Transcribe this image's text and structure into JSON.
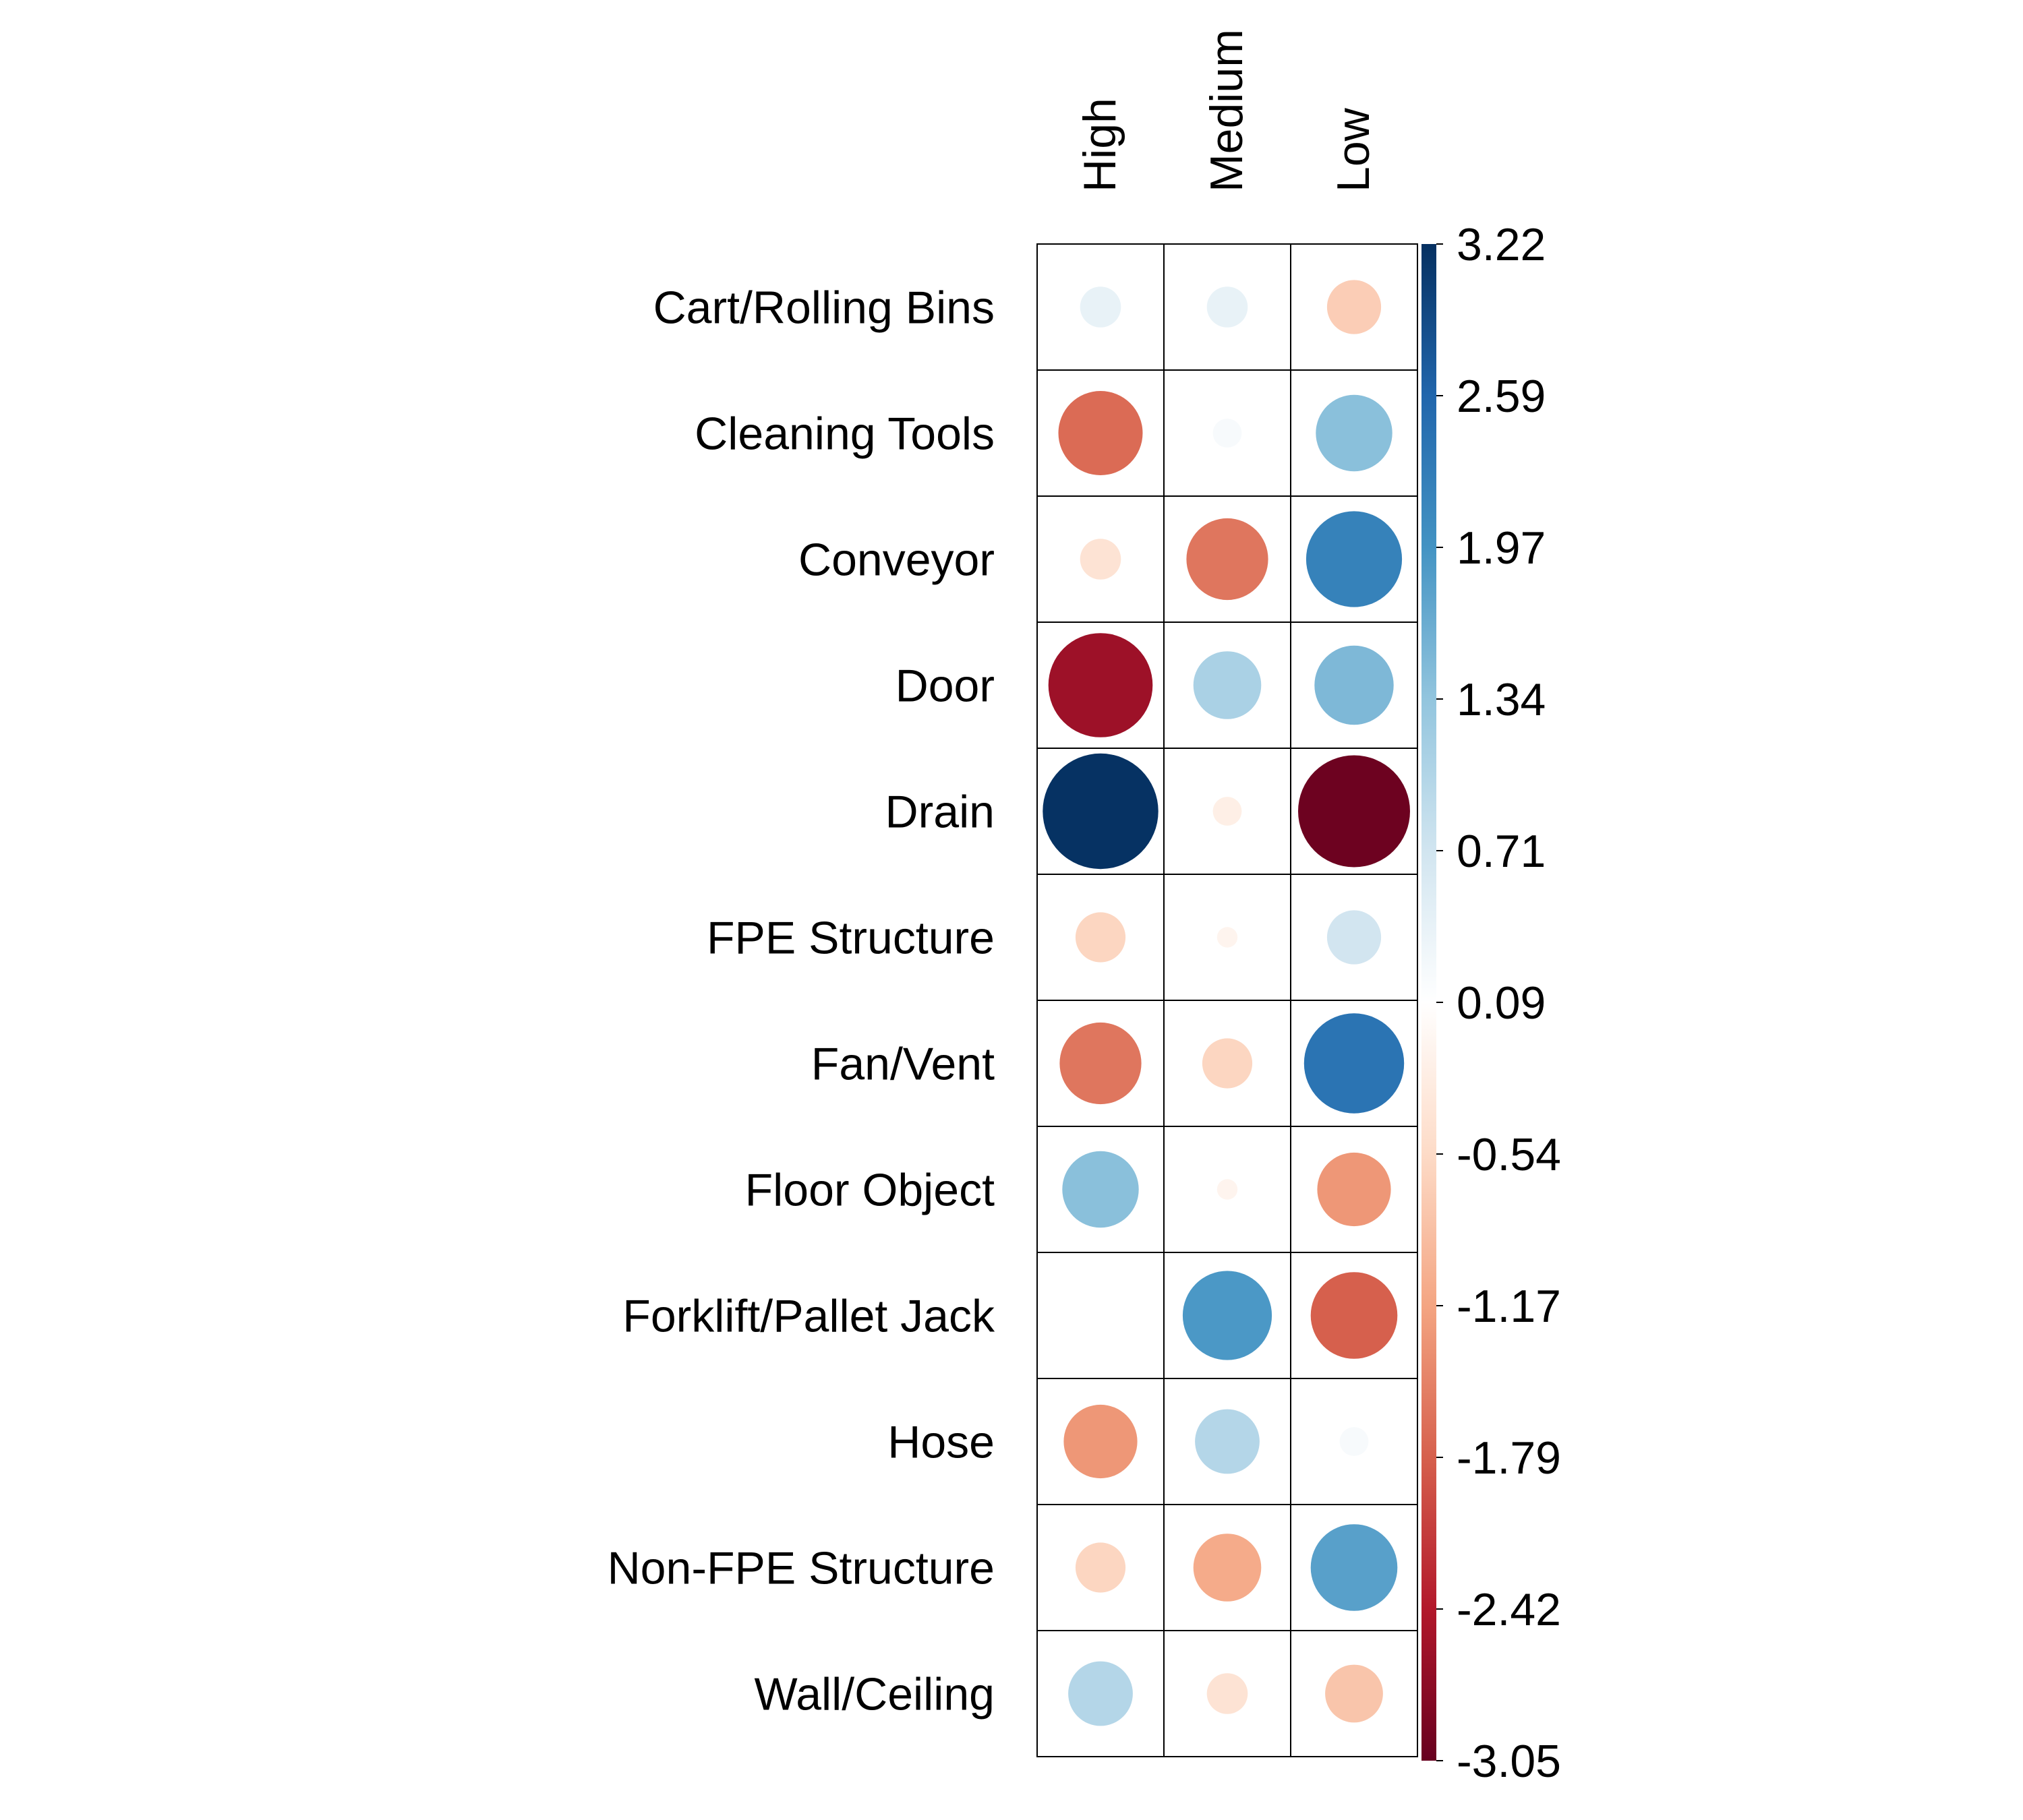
{
  "chart_data": {
    "type": "heatmap",
    "title": "",
    "xlabel": "",
    "ylabel": "",
    "columns": [
      "High",
      "Medium",
      "Low"
    ],
    "rows": [
      "Cart/Rolling Bins",
      "Cleaning Tools",
      "Conveyor",
      "Door",
      "Drain",
      "FPE Structure",
      "Fan/Vent",
      "Floor Object",
      "Forklift/Pallet Jack",
      "Hose",
      "Non-FPE Structure",
      "Wall/Ceiling"
    ],
    "values": [
      [
        0.4,
        0.4,
        -0.7
      ],
      [
        -1.7,
        0.2,
        1.4
      ],
      [
        -0.4,
        -1.6,
        2.2
      ],
      [
        -2.6,
        1.1,
        1.5
      ],
      [
        3.2,
        -0.2,
        -3.0
      ],
      [
        -0.6,
        -0.1,
        0.7
      ],
      [
        -1.6,
        -0.6,
        2.4
      ],
      [
        1.4,
        -0.1,
        -1.3
      ],
      [
        0.0,
        1.9,
        -1.8
      ],
      [
        -1.3,
        1.0,
        0.2
      ],
      [
        -0.6,
        -1.1,
        1.8
      ],
      [
        1.0,
        -0.4,
        -0.8
      ]
    ],
    "colorbar": {
      "ticks": [
        "3.22",
        "2.59",
        "1.97",
        "1.34",
        "0.71",
        "0.09",
        "-0.54",
        "-1.17",
        "-1.79",
        "-2.42",
        "-3.05"
      ],
      "min": -3.05,
      "max": 3.22,
      "colors": [
        "#67001F",
        "#B2182B",
        "#D6604D",
        "#F4A582",
        "#FDDBC7",
        "#FFFFFF",
        "#D1E5F0",
        "#92C5DE",
        "#4393C3",
        "#2166AC",
        "#053061"
      ]
    },
    "grid": true,
    "legend": "right"
  }
}
